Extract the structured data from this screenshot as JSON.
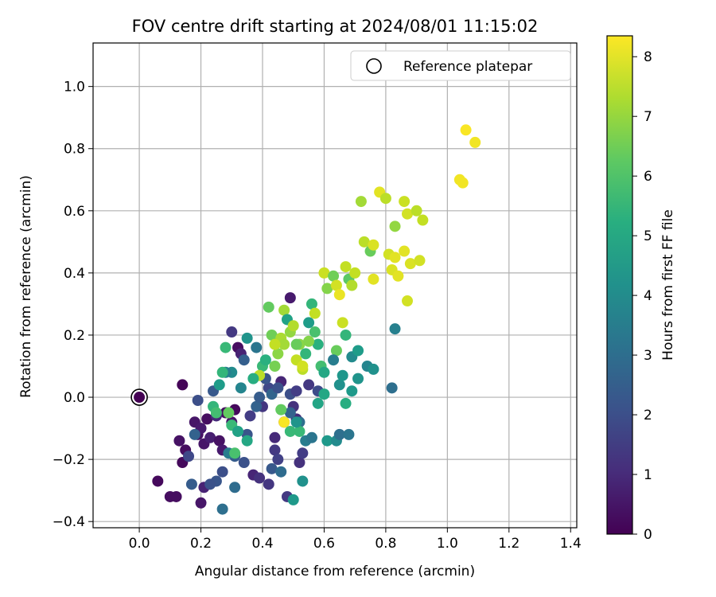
{
  "chart_data": {
    "type": "scatter",
    "title": "FOV centre drift starting at 2024/08/01 11:15:02",
    "xlabel": "Angular distance from reference (arcmin)",
    "ylabel": "Rotation from reference (arcmin)",
    "xlim": [
      -0.15,
      1.42
    ],
    "ylim": [
      -0.42,
      1.14
    ],
    "xticks": [
      "0.0",
      "0.2",
      "0.4",
      "0.6",
      "0.8",
      "1.0",
      "1.2",
      "1.4"
    ],
    "yticks": [
      "−0.4",
      "−0.2",
      "0.0",
      "0.2",
      "0.4",
      "0.6",
      "0.8",
      "1.0"
    ],
    "grid": true,
    "legend": {
      "placement": "top-right",
      "entries": [
        "Reference platepar"
      ]
    },
    "reference_point": {
      "x": 0.0,
      "y": 0.0
    },
    "colorbar": {
      "label": "Hours from first FF file",
      "colormap": "viridis",
      "range": [
        0,
        8.35
      ],
      "ticks": [
        "0",
        "1",
        "2",
        "3",
        "4",
        "5",
        "6",
        "7",
        "8"
      ]
    },
    "points": [
      {
        "x": 0.14,
        "y": 0.04,
        "c": 0.1
      },
      {
        "x": 0.06,
        "y": -0.27,
        "c": 0.2
      },
      {
        "x": 0.1,
        "y": -0.32,
        "c": 0.3
      },
      {
        "x": 0.12,
        "y": -0.32,
        "c": 0.3
      },
      {
        "x": 0.14,
        "y": -0.21,
        "c": 0.2
      },
      {
        "x": 0.15,
        "y": -0.17,
        "c": 0.3
      },
      {
        "x": 0.13,
        "y": -0.14,
        "c": 0.4
      },
      {
        "x": 0.18,
        "y": -0.08,
        "c": 0.5
      },
      {
        "x": 0.19,
        "y": -0.12,
        "c": 0.4
      },
      {
        "x": 0.2,
        "y": -0.1,
        "c": 0.6
      },
      {
        "x": 0.22,
        "y": -0.07,
        "c": 0.3
      },
      {
        "x": 0.21,
        "y": -0.15,
        "c": 0.5
      },
      {
        "x": 0.2,
        "y": -0.34,
        "c": 0.5
      },
      {
        "x": 0.21,
        "y": -0.29,
        "c": 0.8
      },
      {
        "x": 0.23,
        "y": -0.13,
        "c": 0.7
      },
      {
        "x": 0.26,
        "y": -0.14,
        "c": 0.4
      },
      {
        "x": 0.27,
        "y": -0.17,
        "c": 0.6
      },
      {
        "x": 0.28,
        "y": -0.05,
        "c": 0.3
      },
      {
        "x": 0.31,
        "y": -0.04,
        "c": 0.2
      },
      {
        "x": 0.3,
        "y": -0.08,
        "c": 0.5
      },
      {
        "x": 0.25,
        "y": -0.06,
        "c": 1.0
      },
      {
        "x": 0.32,
        "y": 0.16,
        "c": 0.3
      },
      {
        "x": 0.33,
        "y": 0.14,
        "c": 0.8
      },
      {
        "x": 0.3,
        "y": 0.21,
        "c": 1.4
      },
      {
        "x": 0.37,
        "y": -0.25,
        "c": 0.9
      },
      {
        "x": 0.39,
        "y": -0.26,
        "c": 1.2
      },
      {
        "x": 0.42,
        "y": -0.28,
        "c": 1.3
      },
      {
        "x": 0.44,
        "y": -0.13,
        "c": 1.0
      },
      {
        "x": 0.44,
        "y": -0.17,
        "c": 1.4
      },
      {
        "x": 0.45,
        "y": -0.2,
        "c": 1.6
      },
      {
        "x": 0.47,
        "y": -0.08,
        "c": 0.7
      },
      {
        "x": 0.49,
        "y": 0.32,
        "c": 0.6
      },
      {
        "x": 0.5,
        "y": -0.03,
        "c": 1.2
      },
      {
        "x": 0.48,
        "y": -0.32,
        "c": 1.4
      },
      {
        "x": 0.52,
        "y": -0.21,
        "c": 1.2
      },
      {
        "x": 0.53,
        "y": -0.18,
        "c": 1.5
      },
      {
        "x": 0.51,
        "y": -0.07,
        "c": 1.0
      },
      {
        "x": 0.46,
        "y": 0.05,
        "c": 0.9
      },
      {
        "x": 0.42,
        "y": 0.03,
        "c": 1.8
      },
      {
        "x": 0.4,
        "y": -0.03,
        "c": 1.3
      },
      {
        "x": 0.36,
        "y": -0.06,
        "c": 1.5
      },
      {
        "x": 0.38,
        "y": -0.03,
        "c": 2.6
      },
      {
        "x": 0.35,
        "y": -0.12,
        "c": 2.2
      },
      {
        "x": 0.34,
        "y": -0.21,
        "c": 2.1
      },
      {
        "x": 0.31,
        "y": -0.19,
        "c": 2.4
      },
      {
        "x": 0.29,
        "y": -0.18,
        "c": 3.5
      },
      {
        "x": 0.27,
        "y": -0.24,
        "c": 2.0
      },
      {
        "x": 0.25,
        "y": -0.27,
        "c": 2.2
      },
      {
        "x": 0.23,
        "y": -0.28,
        "c": 2.1
      },
      {
        "x": 0.17,
        "y": -0.28,
        "c": 2.4
      },
      {
        "x": 0.16,
        "y": -0.19,
        "c": 1.8
      },
      {
        "x": 0.18,
        "y": -0.12,
        "c": 2.6
      },
      {
        "x": 0.19,
        "y": -0.01,
        "c": 2.0
      },
      {
        "x": 0.24,
        "y": 0.02,
        "c": 2.3
      },
      {
        "x": 0.27,
        "y": -0.36,
        "c": 3.0
      },
      {
        "x": 0.31,
        "y": -0.29,
        "c": 2.9
      },
      {
        "x": 0.43,
        "y": -0.23,
        "c": 2.3
      },
      {
        "x": 0.46,
        "y": -0.24,
        "c": 2.9
      },
      {
        "x": 0.39,
        "y": 0.0,
        "c": 2.4
      },
      {
        "x": 0.41,
        "y": 0.06,
        "c": 2.2
      },
      {
        "x": 0.43,
        "y": 0.01,
        "c": 2.7
      },
      {
        "x": 0.45,
        "y": 0.03,
        "c": 2.1
      },
      {
        "x": 0.49,
        "y": 0.01,
        "c": 2.0
      },
      {
        "x": 0.51,
        "y": 0.02,
        "c": 1.5
      },
      {
        "x": 0.55,
        "y": 0.04,
        "c": 1.4
      },
      {
        "x": 0.58,
        "y": 0.02,
        "c": 1.9
      },
      {
        "x": 0.49,
        "y": -0.05,
        "c": 2.6
      },
      {
        "x": 0.52,
        "y": -0.08,
        "c": 3.0
      },
      {
        "x": 0.54,
        "y": -0.14,
        "c": 3.5
      },
      {
        "x": 0.56,
        "y": -0.13,
        "c": 3.2
      },
      {
        "x": 0.53,
        "y": -0.27,
        "c": 4.2
      },
      {
        "x": 0.5,
        "y": -0.33,
        "c": 4.5
      },
      {
        "x": 0.34,
        "y": 0.12,
        "c": 2.5
      },
      {
        "x": 0.35,
        "y": 0.19,
        "c": 4.3
      },
      {
        "x": 0.38,
        "y": 0.16,
        "c": 3.2
      },
      {
        "x": 0.33,
        "y": 0.03,
        "c": 3.8
      },
      {
        "x": 0.3,
        "y": 0.08,
        "c": 4.0
      },
      {
        "x": 0.28,
        "y": 0.08,
        "c": 3.6
      },
      {
        "x": 0.26,
        "y": 0.04,
        "c": 4.6
      },
      {
        "x": 0.24,
        "y": -0.03,
        "c": 5.5
      },
      {
        "x": 0.25,
        "y": -0.05,
        "c": 5.8
      },
      {
        "x": 0.27,
        "y": 0.08,
        "c": 5.5
      },
      {
        "x": 0.28,
        "y": 0.16,
        "c": 5.6
      },
      {
        "x": 0.29,
        "y": -0.05,
        "c": 6.3
      },
      {
        "x": 0.3,
        "y": -0.09,
        "c": 5.6
      },
      {
        "x": 0.32,
        "y": -0.11,
        "c": 4.8
      },
      {
        "x": 0.31,
        "y": -0.18,
        "c": 5.9
      },
      {
        "x": 0.35,
        "y": -0.14,
        "c": 5.0
      },
      {
        "x": 0.4,
        "y": 0.1,
        "c": 5.6
      },
      {
        "x": 0.41,
        "y": 0.12,
        "c": 5.3
      },
      {
        "x": 0.42,
        "y": 0.29,
        "c": 6.3
      },
      {
        "x": 0.43,
        "y": 0.2,
        "c": 6.5
      },
      {
        "x": 0.44,
        "y": 0.1,
        "c": 6.6
      },
      {
        "x": 0.45,
        "y": 0.14,
        "c": 6.9
      },
      {
        "x": 0.46,
        "y": 0.19,
        "c": 7.3
      },
      {
        "x": 0.47,
        "y": 0.28,
        "c": 7.2
      },
      {
        "x": 0.48,
        "y": 0.25,
        "c": 4.8
      },
      {
        "x": 0.49,
        "y": 0.21,
        "c": 7.0
      },
      {
        "x": 0.5,
        "y": 0.23,
        "c": 7.4
      },
      {
        "x": 0.51,
        "y": 0.12,
        "c": 7.6
      },
      {
        "x": 0.52,
        "y": 0.17,
        "c": 6.9
      },
      {
        "x": 0.53,
        "y": 0.09,
        "c": 7.5
      },
      {
        "x": 0.54,
        "y": 0.14,
        "c": 5.5
      },
      {
        "x": 0.55,
        "y": 0.24,
        "c": 4.6
      },
      {
        "x": 0.56,
        "y": 0.3,
        "c": 5.5
      },
      {
        "x": 0.57,
        "y": 0.27,
        "c": 7.6
      },
      {
        "x": 0.58,
        "y": 0.17,
        "c": 5.3
      },
      {
        "x": 0.59,
        "y": 0.1,
        "c": 5.8
      },
      {
        "x": 0.6,
        "y": 0.4,
        "c": 7.7
      },
      {
        "x": 0.61,
        "y": 0.35,
        "c": 6.8
      },
      {
        "x": 0.63,
        "y": 0.39,
        "c": 6.5
      },
      {
        "x": 0.64,
        "y": 0.36,
        "c": 7.8
      },
      {
        "x": 0.65,
        "y": 0.33,
        "c": 8.1
      },
      {
        "x": 0.66,
        "y": 0.24,
        "c": 7.7
      },
      {
        "x": 0.67,
        "y": 0.42,
        "c": 7.6
      },
      {
        "x": 0.68,
        "y": 0.38,
        "c": 6.2
      },
      {
        "x": 0.69,
        "y": 0.36,
        "c": 7.4
      },
      {
        "x": 0.7,
        "y": 0.4,
        "c": 7.6
      },
      {
        "x": 0.72,
        "y": 0.63,
        "c": 7.2
      },
      {
        "x": 0.73,
        "y": 0.5,
        "c": 7.5
      },
      {
        "x": 0.75,
        "y": 0.47,
        "c": 6.4
      },
      {
        "x": 0.76,
        "y": 0.49,
        "c": 7.9
      },
      {
        "x": 0.76,
        "y": 0.38,
        "c": 8.0
      },
      {
        "x": 0.78,
        "y": 0.66,
        "c": 8.0
      },
      {
        "x": 0.8,
        "y": 0.64,
        "c": 7.5
      },
      {
        "x": 0.81,
        "y": 0.46,
        "c": 7.8
      },
      {
        "x": 0.82,
        "y": 0.41,
        "c": 7.9
      },
      {
        "x": 0.83,
        "y": 0.45,
        "c": 8.0
      },
      {
        "x": 0.84,
        "y": 0.39,
        "c": 8.0
      },
      {
        "x": 0.82,
        "y": 0.03,
        "c": 3.0
      },
      {
        "x": 0.83,
        "y": 0.22,
        "c": 3.6
      },
      {
        "x": 0.83,
        "y": 0.55,
        "c": 7.0
      },
      {
        "x": 0.86,
        "y": 0.47,
        "c": 8.0
      },
      {
        "x": 0.87,
        "y": 0.31,
        "c": 7.8
      },
      {
        "x": 0.86,
        "y": 0.63,
        "c": 7.7
      },
      {
        "x": 0.88,
        "y": 0.43,
        "c": 7.9
      },
      {
        "x": 0.87,
        "y": 0.59,
        "c": 7.8
      },
      {
        "x": 0.9,
        "y": 0.6,
        "c": 7.5
      },
      {
        "x": 0.91,
        "y": 0.44,
        "c": 7.8
      },
      {
        "x": 0.92,
        "y": 0.57,
        "c": 7.6
      },
      {
        "x": 1.04,
        "y": 0.7,
        "c": 8.2
      },
      {
        "x": 1.05,
        "y": 0.69,
        "c": 8.2
      },
      {
        "x": 1.06,
        "y": 0.86,
        "c": 8.3
      },
      {
        "x": 1.09,
        "y": 0.82,
        "c": 8.2
      },
      {
        "x": 0.61,
        "y": -0.14,
        "c": 4.5
      },
      {
        "x": 0.64,
        "y": -0.14,
        "c": 4.0
      },
      {
        "x": 0.65,
        "y": -0.12,
        "c": 3.0
      },
      {
        "x": 0.68,
        "y": -0.12,
        "c": 3.2
      },
      {
        "x": 0.67,
        "y": -0.02,
        "c": 5.2
      },
      {
        "x": 0.65,
        "y": 0.04,
        "c": 4.2
      },
      {
        "x": 0.66,
        "y": 0.07,
        "c": 4.4
      },
      {
        "x": 0.69,
        "y": 0.02,
        "c": 4.5
      },
      {
        "x": 0.71,
        "y": 0.06,
        "c": 4.3
      },
      {
        "x": 0.74,
        "y": 0.1,
        "c": 3.8
      },
      {
        "x": 0.76,
        "y": 0.09,
        "c": 4.2
      },
      {
        "x": 0.69,
        "y": 0.13,
        "c": 4.0
      },
      {
        "x": 0.71,
        "y": 0.15,
        "c": 4.6
      },
      {
        "x": 0.67,
        "y": 0.2,
        "c": 5.5
      },
      {
        "x": 0.64,
        "y": 0.15,
        "c": 6.4
      },
      {
        "x": 0.63,
        "y": 0.12,
        "c": 3.5
      },
      {
        "x": 0.6,
        "y": 0.08,
        "c": 5.0
      },
      {
        "x": 0.58,
        "y": -0.02,
        "c": 4.9
      },
      {
        "x": 0.6,
        "y": 0.01,
        "c": 5.0
      },
      {
        "x": 0.52,
        "y": -0.11,
        "c": 5.6
      },
      {
        "x": 0.51,
        "y": -0.08,
        "c": 4.3
      },
      {
        "x": 0.49,
        "y": -0.11,
        "c": 5.6
      },
      {
        "x": 0.47,
        "y": -0.08,
        "c": 8.3
      },
      {
        "x": 0.46,
        "y": -0.04,
        "c": 6.3
      },
      {
        "x": 0.53,
        "y": 0.1,
        "c": 7.8
      },
      {
        "x": 0.51,
        "y": 0.17,
        "c": 6.4
      },
      {
        "x": 0.47,
        "y": 0.17,
        "c": 7.2
      },
      {
        "x": 0.39,
        "y": 0.07,
        "c": 7.5
      },
      {
        "x": 0.37,
        "y": 0.06,
        "c": 5.2
      },
      {
        "x": 0.44,
        "y": 0.17,
        "c": 7.6
      },
      {
        "x": 0.55,
        "y": 0.18,
        "c": 6.8
      },
      {
        "x": 0.57,
        "y": 0.21,
        "c": 5.9
      }
    ]
  }
}
